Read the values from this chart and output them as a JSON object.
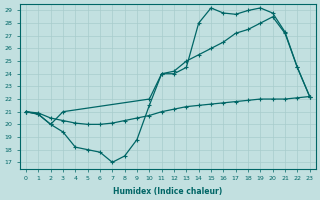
{
  "xlabel": "Humidex (Indice chaleur)",
  "bg_color": "#c2e0e0",
  "line_color": "#006666",
  "grid_color": "#a8cccc",
  "xlim": [
    -0.5,
    23.5
  ],
  "ylim": [
    16.5,
    29.5
  ],
  "yticks": [
    17,
    18,
    19,
    20,
    21,
    22,
    23,
    24,
    25,
    26,
    27,
    28,
    29
  ],
  "xticks": [
    0,
    1,
    2,
    3,
    4,
    5,
    6,
    7,
    8,
    9,
    10,
    11,
    12,
    13,
    14,
    15,
    16,
    17,
    18,
    19,
    20,
    21,
    22,
    23
  ],
  "line_flat_x": [
    0,
    1,
    2,
    3,
    4,
    5,
    6,
    7,
    8,
    9,
    10,
    11,
    12,
    13,
    14,
    15,
    16,
    17,
    18,
    19,
    20,
    21,
    22,
    23
  ],
  "line_flat_y": [
    21.0,
    20.9,
    20.5,
    20.3,
    20.1,
    20.0,
    20.0,
    20.1,
    20.3,
    20.5,
    20.7,
    21.0,
    21.2,
    21.4,
    21.5,
    21.6,
    21.7,
    21.8,
    21.9,
    22.0,
    22.0,
    22.0,
    22.1,
    22.2
  ],
  "line_dip_x": [
    0,
    1,
    2,
    3,
    4,
    5,
    6,
    7,
    8,
    9,
    10,
    11,
    12,
    13,
    14,
    15,
    16,
    17,
    18,
    19,
    20,
    21,
    22,
    23
  ],
  "line_dip_y": [
    21.0,
    20.8,
    20.0,
    19.4,
    18.2,
    18.0,
    17.8,
    17.0,
    17.5,
    18.8,
    21.5,
    24.0,
    24.2,
    25.0,
    25.5,
    26.0,
    26.5,
    27.2,
    27.5,
    28.0,
    28.5,
    27.2,
    24.5,
    22.2
  ],
  "line_peak_x": [
    0,
    1,
    2,
    3,
    10,
    11,
    12,
    13,
    14,
    15,
    16,
    17,
    18,
    19,
    20,
    21,
    22,
    23
  ],
  "line_peak_y": [
    21.0,
    20.8,
    20.0,
    21.0,
    22.0,
    24.0,
    24.0,
    24.5,
    28.0,
    29.2,
    28.8,
    28.7,
    29.0,
    29.2,
    28.8,
    27.3,
    24.5,
    22.2
  ]
}
